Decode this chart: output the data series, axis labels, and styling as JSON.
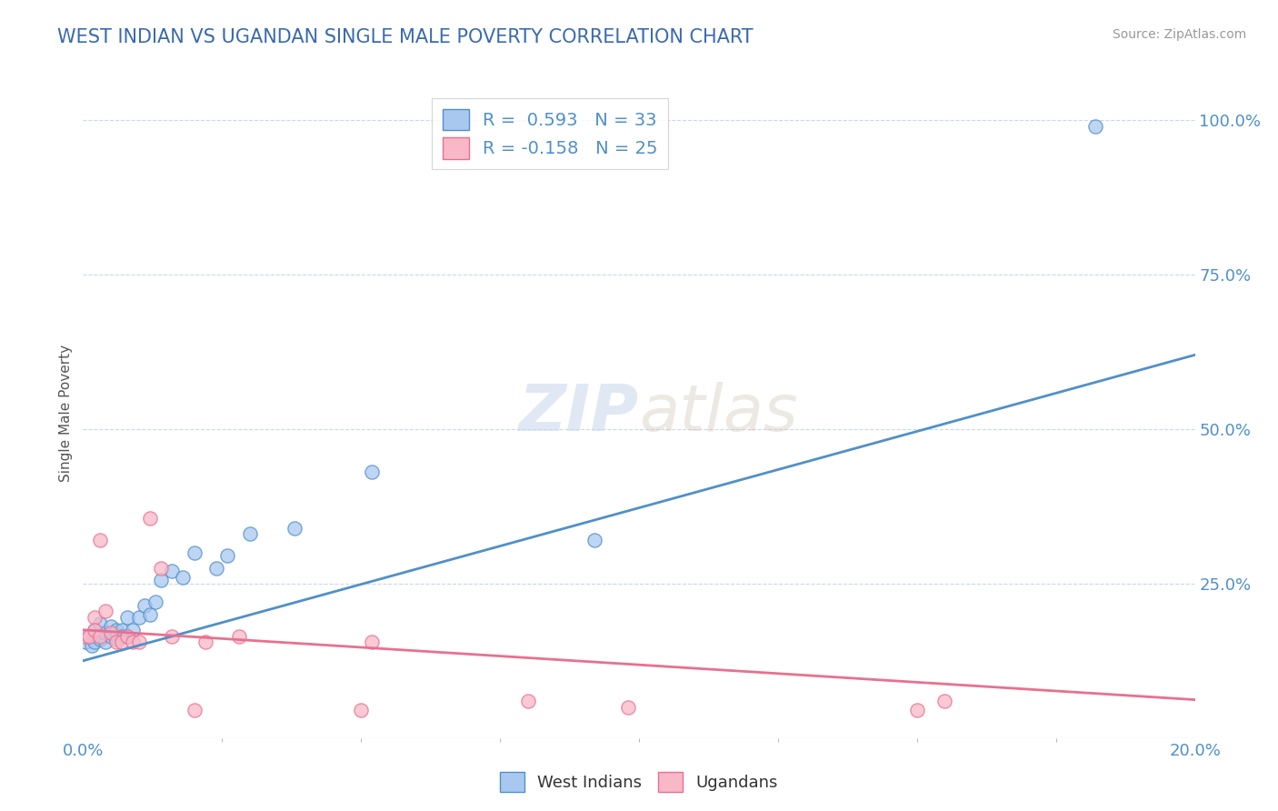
{
  "title": "WEST INDIAN VS UGANDAN SINGLE MALE POVERTY CORRELATION CHART",
  "source": "Source: ZipAtlas.com",
  "ylabel": "Single Male Poverty",
  "blue_color": "#a8c8f0",
  "pink_color": "#f8b8c8",
  "line_blue": "#5090c8",
  "line_pink": "#e87090",
  "title_color": "#3a6ab0",
  "tick_color": "#5090c8",
  "blue_scatter_x": [
    0.0005,
    0.001,
    0.0015,
    0.002,
    0.002,
    0.003,
    0.003,
    0.004,
    0.004,
    0.005,
    0.005,
    0.006,
    0.006,
    0.007,
    0.007,
    0.008,
    0.008,
    0.009,
    0.01,
    0.011,
    0.012,
    0.013,
    0.014,
    0.016,
    0.018,
    0.02,
    0.024,
    0.026,
    0.03,
    0.038,
    0.052,
    0.092,
    0.182
  ],
  "blue_scatter_y": [
    0.155,
    0.165,
    0.15,
    0.175,
    0.155,
    0.16,
    0.185,
    0.155,
    0.17,
    0.165,
    0.18,
    0.16,
    0.175,
    0.175,
    0.165,
    0.195,
    0.165,
    0.175,
    0.195,
    0.215,
    0.2,
    0.22,
    0.255,
    0.27,
    0.26,
    0.3,
    0.275,
    0.295,
    0.33,
    0.34,
    0.43,
    0.32,
    0.99
  ],
  "pink_scatter_x": [
    0.0005,
    0.001,
    0.002,
    0.002,
    0.003,
    0.003,
    0.004,
    0.005,
    0.006,
    0.007,
    0.008,
    0.009,
    0.01,
    0.012,
    0.014,
    0.016,
    0.02,
    0.022,
    0.028,
    0.05,
    0.052,
    0.08,
    0.098,
    0.15,
    0.155
  ],
  "pink_scatter_y": [
    0.165,
    0.165,
    0.195,
    0.175,
    0.165,
    0.32,
    0.205,
    0.17,
    0.155,
    0.155,
    0.165,
    0.155,
    0.155,
    0.355,
    0.275,
    0.165,
    0.045,
    0.155,
    0.165,
    0.045,
    0.155,
    0.06,
    0.05,
    0.045,
    0.06
  ],
  "blue_line_x": [
    0.0,
    0.2
  ],
  "blue_line_y": [
    0.125,
    0.62
  ],
  "pink_line_x": [
    0.0,
    0.2
  ],
  "pink_line_y": [
    0.175,
    0.062
  ],
  "xlim": [
    0.0,
    0.2
  ],
  "ylim": [
    0.0,
    1.05
  ],
  "yticks": [
    0.25,
    0.5,
    0.75,
    1.0
  ],
  "yticklabels": [
    "25.0%",
    "50.0%",
    "75.0%",
    "100.0%"
  ],
  "background_color": "#ffffff",
  "grid_color": "#c8d8ec"
}
